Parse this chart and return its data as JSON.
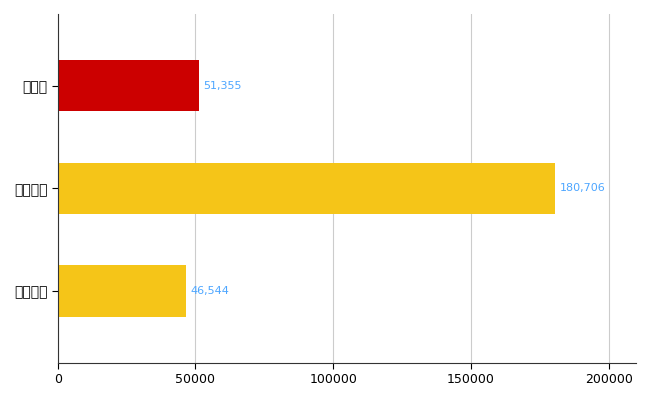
{
  "categories": [
    "長野県",
    "全国最大",
    "全国平均"
  ],
  "values": [
    51355,
    180706,
    46544
  ],
  "bar_colors": [
    "#cc0000",
    "#f5c518",
    "#f5c518"
  ],
  "value_labels": [
    "51,355",
    "180,706",
    "46,544"
  ],
  "value_label_color": "#4da6ff",
  "xlim": [
    0,
    210000
  ],
  "xticks": [
    0,
    50000,
    100000,
    150000,
    200000
  ],
  "xtick_labels": [
    "0",
    "50000",
    "100000",
    "150000",
    "200000"
  ],
  "background_color": "#ffffff",
  "grid_color": "#cccccc",
  "bar_height": 0.5,
  "label_fontsize": 10,
  "tick_fontsize": 9,
  "value_fontsize": 8
}
